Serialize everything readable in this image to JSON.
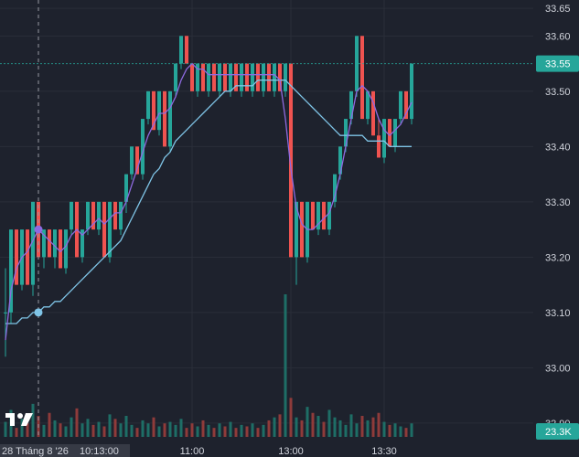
{
  "chart_data": {
    "type": "candlestick",
    "y_ticks": [
      "33.65",
      "33.60",
      "33.50",
      "33.40",
      "33.30",
      "33.20",
      "33.10",
      "33.00",
      "32.90"
    ],
    "y_tick_values": [
      33.65,
      33.6,
      33.5,
      33.4,
      33.3,
      33.2,
      33.1,
      33.0,
      32.9
    ],
    "ylim": [
      32.875,
      33.665
    ],
    "x_ticks": [
      {
        "label": "11:00",
        "bar": 34
      },
      {
        "label": "13:00",
        "bar": 52
      },
      {
        "label": "13:30",
        "bar": 69
      }
    ],
    "crosshair": {
      "bar": 6,
      "date_label": "28 Tháng 8 '26",
      "time_label": "10:13:00"
    },
    "last_price_label": "33.55",
    "last_price": 33.55,
    "volume_label": "23.3K",
    "colors": {
      "up": "#26a69a",
      "down": "#ef5350",
      "up_vol": "#1e6e66",
      "down_vol": "#8f3b3a",
      "ma_fast": "#8e6ae0",
      "ma_slow": "#7fc4e6",
      "grid": "#2a2e39",
      "text": "#d1d4dc",
      "background": "#1e222d"
    },
    "candles": [
      [
        33.1,
        33.18,
        33.02,
        33.1
      ],
      [
        33.1,
        33.25,
        33.08,
        33.25
      ],
      [
        33.25,
        33.25,
        33.15,
        33.15
      ],
      [
        33.15,
        33.25,
        33.14,
        33.25
      ],
      [
        33.25,
        33.25,
        33.15,
        33.15
      ],
      [
        33.15,
        33.3,
        33.13,
        33.3
      ],
      [
        33.3,
        33.3,
        33.2,
        33.2
      ],
      [
        33.2,
        33.25,
        33.18,
        33.25
      ],
      [
        33.25,
        33.25,
        33.2,
        33.2
      ],
      [
        33.2,
        33.25,
        33.18,
        33.25
      ],
      [
        33.25,
        33.25,
        33.18,
        33.18
      ],
      [
        33.18,
        33.25,
        33.17,
        33.25
      ],
      [
        33.25,
        33.3,
        33.24,
        33.3
      ],
      [
        33.3,
        33.3,
        33.2,
        33.2
      ],
      [
        33.2,
        33.25,
        33.19,
        33.25
      ],
      [
        33.25,
        33.3,
        33.24,
        33.3
      ],
      [
        33.3,
        33.3,
        33.25,
        33.25
      ],
      [
        33.25,
        33.3,
        33.24,
        33.3
      ],
      [
        33.3,
        33.3,
        33.2,
        33.2
      ],
      [
        33.2,
        33.3,
        33.19,
        33.3
      ],
      [
        33.3,
        33.3,
        33.25,
        33.25
      ],
      [
        33.25,
        33.3,
        33.24,
        33.3
      ],
      [
        33.3,
        33.35,
        33.28,
        33.35
      ],
      [
        33.35,
        33.4,
        33.34,
        33.4
      ],
      [
        33.4,
        33.4,
        33.35,
        33.35
      ],
      [
        33.35,
        33.45,
        33.34,
        33.45
      ],
      [
        33.45,
        33.5,
        33.44,
        33.5
      ],
      [
        33.5,
        33.5,
        33.43,
        33.43
      ],
      [
        33.43,
        33.5,
        33.42,
        33.5
      ],
      [
        33.5,
        33.5,
        33.4,
        33.4
      ],
      [
        33.4,
        33.5,
        33.39,
        33.5
      ],
      [
        33.5,
        33.55,
        33.49,
        33.55
      ],
      [
        33.55,
        33.6,
        33.54,
        33.6
      ],
      [
        33.6,
        33.6,
        33.55,
        33.55
      ],
      [
        33.55,
        33.55,
        33.5,
        33.5
      ],
      [
        33.5,
        33.55,
        33.49,
        33.55
      ],
      [
        33.55,
        33.55,
        33.5,
        33.5
      ],
      [
        33.5,
        33.55,
        33.49,
        33.55
      ],
      [
        33.55,
        33.55,
        33.5,
        33.5
      ],
      [
        33.5,
        33.55,
        33.49,
        33.55
      ],
      [
        33.55,
        33.55,
        33.5,
        33.5
      ],
      [
        33.5,
        33.55,
        33.49,
        33.55
      ],
      [
        33.55,
        33.55,
        33.5,
        33.5
      ],
      [
        33.5,
        33.55,
        33.49,
        33.55
      ],
      [
        33.55,
        33.55,
        33.5,
        33.5
      ],
      [
        33.5,
        33.55,
        33.49,
        33.55
      ],
      [
        33.55,
        33.55,
        33.5,
        33.5
      ],
      [
        33.5,
        33.55,
        33.49,
        33.55
      ],
      [
        33.55,
        33.55,
        33.5,
        33.5
      ],
      [
        33.5,
        33.55,
        33.49,
        33.55
      ],
      [
        33.55,
        33.55,
        33.5,
        33.5
      ],
      [
        33.5,
        33.55,
        33.49,
        33.55
      ],
      [
        33.55,
        33.55,
        33.2,
        33.2
      ],
      [
        33.2,
        33.3,
        33.15,
        33.3
      ],
      [
        33.3,
        33.3,
        33.2,
        33.2
      ],
      [
        33.2,
        33.3,
        33.19,
        33.3
      ],
      [
        33.3,
        33.3,
        33.25,
        33.25
      ],
      [
        33.25,
        33.3,
        33.24,
        33.3
      ],
      [
        33.3,
        33.3,
        33.25,
        33.25
      ],
      [
        33.25,
        33.3,
        33.24,
        33.3
      ],
      [
        33.3,
        33.35,
        33.29,
        33.35
      ],
      [
        33.35,
        33.4,
        33.34,
        33.4
      ],
      [
        33.4,
        33.45,
        33.39,
        33.45
      ],
      [
        33.45,
        33.5,
        33.44,
        33.5
      ],
      [
        33.5,
        33.6,
        33.49,
        33.6
      ],
      [
        33.6,
        33.6,
        33.45,
        33.45
      ],
      [
        33.45,
        33.5,
        33.44,
        33.5
      ],
      [
        33.5,
        33.5,
        33.42,
        33.42
      ],
      [
        33.42,
        33.45,
        33.38,
        33.38
      ],
      [
        33.38,
        33.45,
        33.37,
        33.45
      ],
      [
        33.45,
        33.45,
        33.4,
        33.4
      ],
      [
        33.4,
        33.45,
        33.39,
        33.45
      ],
      [
        33.45,
        33.5,
        33.44,
        33.5
      ],
      [
        33.5,
        33.5,
        33.45,
        33.45
      ],
      [
        33.45,
        33.55,
        33.44,
        33.55
      ]
    ],
    "volumes": [
      1000,
      1800,
      600,
      1200,
      900,
      2200,
      1400,
      800,
      1600,
      1100,
      900,
      700,
      1300,
      1900,
      900,
      1200,
      800,
      1000,
      700,
      1500,
      1200,
      900,
      1400,
      800,
      600,
      1100,
      900,
      1300,
      700,
      900,
      1000,
      800,
      1200,
      600,
      900,
      700,
      1100,
      800,
      600,
      900,
      700,
      1000,
      600,
      800,
      700,
      900,
      600,
      800,
      1100,
      1300,
      1500,
      9500,
      2600,
      1300,
      1100,
      2000,
      1600,
      1400,
      1000,
      1800,
      1300,
      1100,
      800,
      1500,
      900,
      1400,
      1100,
      1300,
      1600,
      1000,
      800,
      900,
      700,
      600,
      900
    ],
    "ma_fast": [
      33.05,
      33.14,
      33.18,
      33.2,
      33.21,
      33.23,
      33.25,
      33.24,
      33.23,
      33.22,
      33.21,
      33.22,
      33.24,
      33.25,
      33.24,
      33.25,
      33.26,
      33.27,
      33.26,
      33.27,
      33.28,
      33.28,
      33.3,
      33.33,
      33.36,
      33.39,
      33.42,
      33.44,
      33.46,
      33.46,
      33.47,
      33.49,
      33.52,
      33.54,
      33.55,
      33.54,
      33.54,
      33.53,
      33.53,
      33.53,
      33.53,
      33.53,
      33.53,
      33.53,
      33.53,
      33.53,
      33.53,
      33.53,
      33.53,
      33.53,
      33.52,
      33.45,
      33.36,
      33.29,
      33.26,
      33.25,
      33.25,
      33.26,
      33.27,
      33.28,
      33.31,
      33.35,
      33.4,
      33.45,
      33.5,
      33.51,
      33.5,
      33.48,
      33.45,
      33.43,
      33.42,
      33.43,
      33.44,
      33.46,
      33.48
    ],
    "ma_slow": [
      33.08,
      33.08,
      33.08,
      33.09,
      33.09,
      33.1,
      33.1,
      33.11,
      33.11,
      33.12,
      33.12,
      33.13,
      33.14,
      33.15,
      33.16,
      33.17,
      33.18,
      33.19,
      33.2,
      33.21,
      33.22,
      33.23,
      33.25,
      33.27,
      33.29,
      33.31,
      33.33,
      33.35,
      33.36,
      33.38,
      33.39,
      33.41,
      33.42,
      33.43,
      33.44,
      33.45,
      33.46,
      33.47,
      33.48,
      33.49,
      33.5,
      33.5,
      33.51,
      33.51,
      33.51,
      33.51,
      33.52,
      33.52,
      33.52,
      33.52,
      33.52,
      33.52,
      33.51,
      33.5,
      33.49,
      33.48,
      33.47,
      33.46,
      33.45,
      33.44,
      33.43,
      33.42,
      33.42,
      33.42,
      33.42,
      33.42,
      33.41,
      33.41,
      33.41,
      33.41,
      33.4,
      33.4,
      33.4,
      33.4,
      33.4
    ]
  }
}
